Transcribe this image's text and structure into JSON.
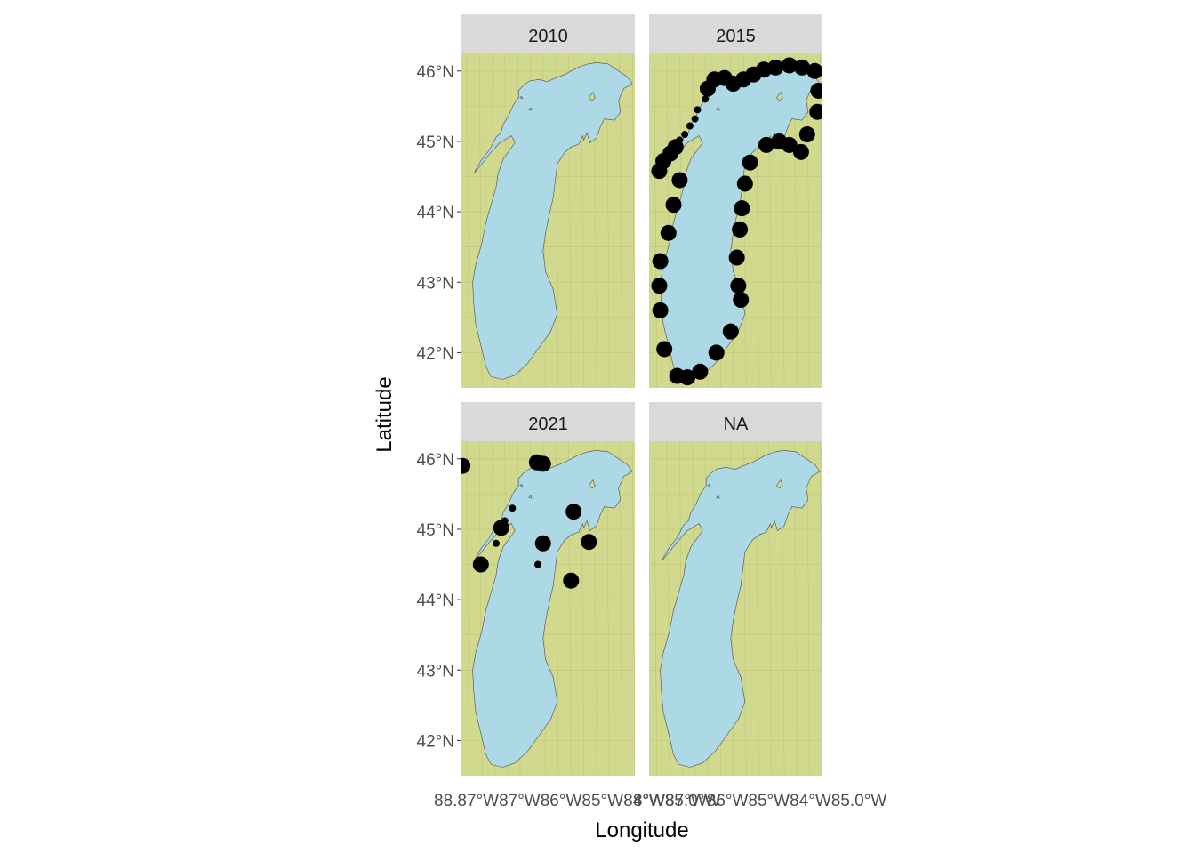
{
  "chart_data": {
    "type": "map",
    "facet_variable": "year",
    "xlabel": "Longitude",
    "ylabel": "Latitude",
    "xlim": [
      -88.1,
      -84.7
    ],
    "ylim": [
      41.5,
      46.25
    ],
    "y_ticks": [
      {
        "value": 42,
        "label": "42°N"
      },
      {
        "value": 43,
        "label": "43°N"
      },
      {
        "value": 44,
        "label": "44°N"
      },
      {
        "value": 45,
        "label": "45°N"
      },
      {
        "value": 46,
        "label": "46°N"
      }
    ],
    "x_tick_text": "88.87°W87°W86°W85°W84°W85.0°W",
    "x_tick_text_right": "8°W87°W86°W85°W84°W85.0°W",
    "panels": [
      {
        "label": "2010",
        "points": []
      },
      {
        "label": "2015",
        "points": [
          {
            "lon": -87.9,
            "lat": 44.58,
            "size": "large"
          },
          {
            "lon": -87.82,
            "lat": 44.72,
            "size": "large"
          },
          {
            "lon": -87.68,
            "lat": 44.83,
            "size": "large"
          },
          {
            "lon": -87.58,
            "lat": 44.92,
            "size": "large"
          },
          {
            "lon": -87.5,
            "lat": 45.02,
            "size": "small"
          },
          {
            "lon": -87.4,
            "lat": 45.1,
            "size": "small"
          },
          {
            "lon": -87.3,
            "lat": 45.22,
            "size": "small"
          },
          {
            "lon": -87.2,
            "lat": 45.32,
            "size": "small"
          },
          {
            "lon": -87.15,
            "lat": 45.45,
            "size": "small"
          },
          {
            "lon": -87.0,
            "lat": 45.6,
            "size": "small"
          },
          {
            "lon": -86.95,
            "lat": 45.75,
            "size": "large"
          },
          {
            "lon": -86.82,
            "lat": 45.88,
            "size": "large"
          },
          {
            "lon": -86.62,
            "lat": 45.9,
            "size": "large"
          },
          {
            "lon": -86.45,
            "lat": 45.82,
            "size": "large"
          },
          {
            "lon": -86.25,
            "lat": 45.88,
            "size": "large"
          },
          {
            "lon": -86.05,
            "lat": 45.95,
            "size": "large"
          },
          {
            "lon": -85.85,
            "lat": 46.02,
            "size": "large"
          },
          {
            "lon": -85.62,
            "lat": 46.05,
            "size": "large"
          },
          {
            "lon": -85.35,
            "lat": 46.08,
            "size": "large"
          },
          {
            "lon": -85.1,
            "lat": 46.05,
            "size": "large"
          },
          {
            "lon": -84.85,
            "lat": 46.0,
            "size": "large"
          },
          {
            "lon": -84.78,
            "lat": 45.72,
            "size": "large"
          },
          {
            "lon": -84.8,
            "lat": 45.42,
            "size": "large"
          },
          {
            "lon": -85.0,
            "lat": 45.1,
            "size": "large"
          },
          {
            "lon": -85.12,
            "lat": 44.85,
            "size": "large"
          },
          {
            "lon": -85.35,
            "lat": 44.95,
            "size": "large"
          },
          {
            "lon": -85.55,
            "lat": 45.0,
            "size": "large"
          },
          {
            "lon": -85.8,
            "lat": 44.95,
            "size": "large"
          },
          {
            "lon": -86.12,
            "lat": 44.7,
            "size": "large"
          },
          {
            "lon": -86.22,
            "lat": 44.4,
            "size": "large"
          },
          {
            "lon": -86.28,
            "lat": 44.05,
            "size": "large"
          },
          {
            "lon": -86.32,
            "lat": 43.75,
            "size": "large"
          },
          {
            "lon": -86.38,
            "lat": 43.35,
            "size": "large"
          },
          {
            "lon": -86.35,
            "lat": 42.95,
            "size": "large"
          },
          {
            "lon": -86.3,
            "lat": 42.75,
            "size": "large"
          },
          {
            "lon": -86.5,
            "lat": 42.3,
            "size": "large"
          },
          {
            "lon": -86.78,
            "lat": 42.0,
            "size": "large"
          },
          {
            "lon": -87.1,
            "lat": 41.73,
            "size": "large"
          },
          {
            "lon": -87.35,
            "lat": 41.65,
            "size": "large"
          },
          {
            "lon": -87.55,
            "lat": 41.67,
            "size": "large"
          },
          {
            "lon": -87.8,
            "lat": 42.05,
            "size": "large"
          },
          {
            "lon": -87.88,
            "lat": 42.6,
            "size": "large"
          },
          {
            "lon": -87.9,
            "lat": 42.95,
            "size": "large"
          },
          {
            "lon": -87.88,
            "lat": 43.3,
            "size": "large"
          },
          {
            "lon": -87.72,
            "lat": 43.7,
            "size": "large"
          },
          {
            "lon": -87.62,
            "lat": 44.1,
            "size": "large"
          },
          {
            "lon": -87.5,
            "lat": 44.45,
            "size": "large"
          }
        ]
      },
      {
        "label": "2021",
        "points": [
          {
            "lon": -88.08,
            "lat": 45.9,
            "size": "large"
          },
          {
            "lon": -87.72,
            "lat": 44.5,
            "size": "large"
          },
          {
            "lon": -87.32,
            "lat": 45.02,
            "size": "large"
          },
          {
            "lon": -87.25,
            "lat": 45.12,
            "size": "small"
          },
          {
            "lon": -87.1,
            "lat": 45.3,
            "size": "small"
          },
          {
            "lon": -87.42,
            "lat": 44.8,
            "size": "small"
          },
          {
            "lon": -86.62,
            "lat": 45.95,
            "size": "large"
          },
          {
            "lon": -86.5,
            "lat": 45.93,
            "size": "large"
          },
          {
            "lon": -86.5,
            "lat": 44.8,
            "size": "large"
          },
          {
            "lon": -86.6,
            "lat": 44.5,
            "size": "small"
          },
          {
            "lon": -85.95,
            "lat": 44.27,
            "size": "large"
          },
          {
            "lon": -85.6,
            "lat": 44.82,
            "size": "large"
          },
          {
            "lon": -85.9,
            "lat": 45.25,
            "size": "large"
          }
        ]
      },
      {
        "label": "NA",
        "points": []
      }
    ]
  },
  "colors": {
    "land": "#d1d98f",
    "water": "#add8e6",
    "grid": "#b7bc6e",
    "strip": "#d9d9d9",
    "point": "#000000",
    "outline": "#4d4d4d"
  }
}
